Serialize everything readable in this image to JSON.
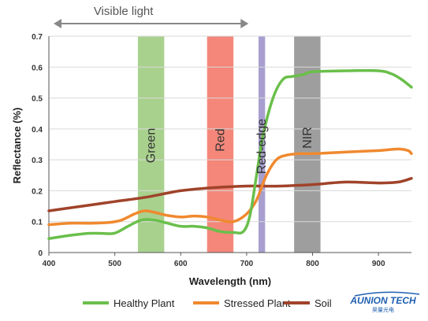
{
  "chart_data": {
    "type": "line",
    "xlabel": "Wavelength (nm)",
    "ylabel": "Reflectance (%)",
    "xlim": [
      400,
      950
    ],
    "ylim": [
      0,
      0.7
    ],
    "x_ticks": [
      "400",
      "500",
      "600",
      "700",
      "800",
      "900"
    ],
    "y_ticks": [
      "0",
      "0.1",
      "0.2",
      "0.3",
      "0.4",
      "0.5",
      "0.6",
      "0.7"
    ],
    "grid": "horizontal",
    "legend_position": "bottom",
    "annotation": {
      "text": "Visible light",
      "x_start": 400,
      "x_end": 710
    },
    "bands": [
      {
        "label": "Green",
        "x_start": 535,
        "x_end": 575,
        "color": "#a9d18e"
      },
      {
        "label": "Red",
        "x_start": 640,
        "x_end": 680,
        "color": "#f4877a"
      },
      {
        "label": "Red-edge",
        "x_start": 718,
        "x_end": 728,
        "color": "#a89fd0"
      },
      {
        "label": "NIR",
        "x_start": 772,
        "x_end": 812,
        "color": "#9e9e9e"
      }
    ],
    "series": [
      {
        "name": "Healthy Plant",
        "color": "#6abf4b",
        "points": [
          [
            400,
            0.045
          ],
          [
            430,
            0.055
          ],
          [
            460,
            0.062
          ],
          [
            480,
            0.062
          ],
          [
            500,
            0.063
          ],
          [
            520,
            0.085
          ],
          [
            540,
            0.105
          ],
          [
            560,
            0.105
          ],
          [
            580,
            0.095
          ],
          [
            600,
            0.085
          ],
          [
            620,
            0.085
          ],
          [
            640,
            0.08
          ],
          [
            660,
            0.068
          ],
          [
            680,
            0.065
          ],
          [
            695,
            0.068
          ],
          [
            705,
            0.12
          ],
          [
            715,
            0.25
          ],
          [
            725,
            0.38
          ],
          [
            740,
            0.5
          ],
          [
            755,
            0.56
          ],
          [
            770,
            0.57
          ],
          [
            785,
            0.575
          ],
          [
            800,
            0.585
          ],
          [
            850,
            0.588
          ],
          [
            900,
            0.588
          ],
          [
            920,
            0.578
          ],
          [
            935,
            0.56
          ],
          [
            950,
            0.535
          ]
        ]
      },
      {
        "name": "Stressed Plant",
        "color": "#f0892f",
        "points": [
          [
            400,
            0.09
          ],
          [
            430,
            0.095
          ],
          [
            460,
            0.095
          ],
          [
            490,
            0.097
          ],
          [
            510,
            0.105
          ],
          [
            530,
            0.125
          ],
          [
            545,
            0.135
          ],
          [
            560,
            0.13
          ],
          [
            580,
            0.12
          ],
          [
            600,
            0.115
          ],
          [
            620,
            0.118
          ],
          [
            640,
            0.115
          ],
          [
            660,
            0.105
          ],
          [
            680,
            0.1
          ],
          [
            700,
            0.125
          ],
          [
            715,
            0.17
          ],
          [
            730,
            0.25
          ],
          [
            745,
            0.3
          ],
          [
            760,
            0.315
          ],
          [
            780,
            0.32
          ],
          [
            800,
            0.32
          ],
          [
            850,
            0.325
          ],
          [
            900,
            0.33
          ],
          [
            930,
            0.335
          ],
          [
            945,
            0.33
          ],
          [
            950,
            0.32
          ]
        ]
      },
      {
        "name": "Soil",
        "color": "#a0432a",
        "points": [
          [
            400,
            0.135
          ],
          [
            450,
            0.15
          ],
          [
            500,
            0.165
          ],
          [
            550,
            0.18
          ],
          [
            600,
            0.2
          ],
          [
            650,
            0.21
          ],
          [
            700,
            0.215
          ],
          [
            750,
            0.215
          ],
          [
            800,
            0.22
          ],
          [
            850,
            0.228
          ],
          [
            900,
            0.225
          ],
          [
            930,
            0.228
          ],
          [
            950,
            0.24
          ]
        ]
      }
    ]
  },
  "logo": {
    "title": "AUNION TECH",
    "subtitle": "昊量光电"
  }
}
